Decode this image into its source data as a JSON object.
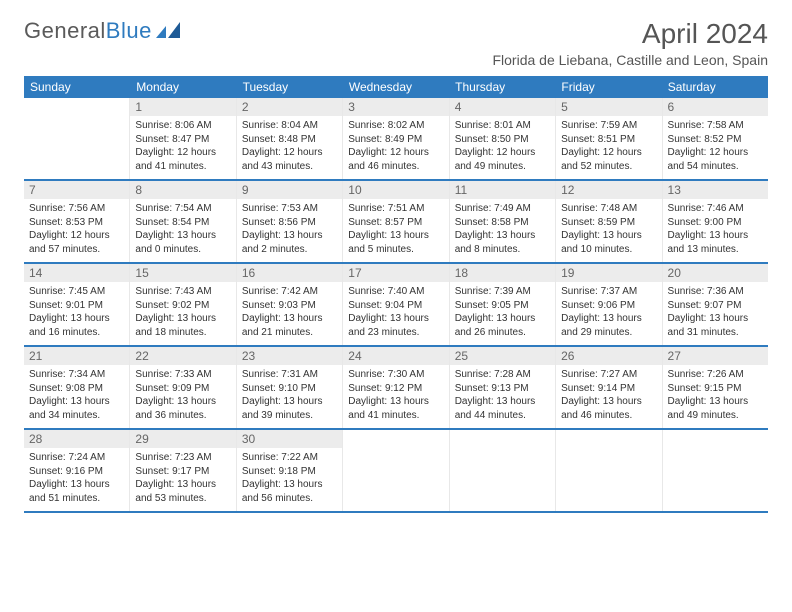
{
  "brand": {
    "part1": "General",
    "part2": "Blue"
  },
  "title": "April 2024",
  "location": "Florida de Liebana, Castille and Leon, Spain",
  "colors": {
    "accent": "#2f7bbf",
    "header_bg": "#2f7bbf",
    "header_text": "#ffffff",
    "daynum_bg": "#ececec",
    "border": "#2f7bbf",
    "text": "#333333"
  },
  "weekdays": [
    "Sunday",
    "Monday",
    "Tuesday",
    "Wednesday",
    "Thursday",
    "Friday",
    "Saturday"
  ],
  "weeks": [
    [
      {
        "empty": true
      },
      {
        "num": "1",
        "sunrise": "Sunrise: 8:06 AM",
        "sunset": "Sunset: 8:47 PM",
        "daylight1": "Daylight: 12 hours",
        "daylight2": "and 41 minutes."
      },
      {
        "num": "2",
        "sunrise": "Sunrise: 8:04 AM",
        "sunset": "Sunset: 8:48 PM",
        "daylight1": "Daylight: 12 hours",
        "daylight2": "and 43 minutes."
      },
      {
        "num": "3",
        "sunrise": "Sunrise: 8:02 AM",
        "sunset": "Sunset: 8:49 PM",
        "daylight1": "Daylight: 12 hours",
        "daylight2": "and 46 minutes."
      },
      {
        "num": "4",
        "sunrise": "Sunrise: 8:01 AM",
        "sunset": "Sunset: 8:50 PM",
        "daylight1": "Daylight: 12 hours",
        "daylight2": "and 49 minutes."
      },
      {
        "num": "5",
        "sunrise": "Sunrise: 7:59 AM",
        "sunset": "Sunset: 8:51 PM",
        "daylight1": "Daylight: 12 hours",
        "daylight2": "and 52 minutes."
      },
      {
        "num": "6",
        "sunrise": "Sunrise: 7:58 AM",
        "sunset": "Sunset: 8:52 PM",
        "daylight1": "Daylight: 12 hours",
        "daylight2": "and 54 minutes."
      }
    ],
    [
      {
        "num": "7",
        "sunrise": "Sunrise: 7:56 AM",
        "sunset": "Sunset: 8:53 PM",
        "daylight1": "Daylight: 12 hours",
        "daylight2": "and 57 minutes."
      },
      {
        "num": "8",
        "sunrise": "Sunrise: 7:54 AM",
        "sunset": "Sunset: 8:54 PM",
        "daylight1": "Daylight: 13 hours",
        "daylight2": "and 0 minutes."
      },
      {
        "num": "9",
        "sunrise": "Sunrise: 7:53 AM",
        "sunset": "Sunset: 8:56 PM",
        "daylight1": "Daylight: 13 hours",
        "daylight2": "and 2 minutes."
      },
      {
        "num": "10",
        "sunrise": "Sunrise: 7:51 AM",
        "sunset": "Sunset: 8:57 PM",
        "daylight1": "Daylight: 13 hours",
        "daylight2": "and 5 minutes."
      },
      {
        "num": "11",
        "sunrise": "Sunrise: 7:49 AM",
        "sunset": "Sunset: 8:58 PM",
        "daylight1": "Daylight: 13 hours",
        "daylight2": "and 8 minutes."
      },
      {
        "num": "12",
        "sunrise": "Sunrise: 7:48 AM",
        "sunset": "Sunset: 8:59 PM",
        "daylight1": "Daylight: 13 hours",
        "daylight2": "and 10 minutes."
      },
      {
        "num": "13",
        "sunrise": "Sunrise: 7:46 AM",
        "sunset": "Sunset: 9:00 PM",
        "daylight1": "Daylight: 13 hours",
        "daylight2": "and 13 minutes."
      }
    ],
    [
      {
        "num": "14",
        "sunrise": "Sunrise: 7:45 AM",
        "sunset": "Sunset: 9:01 PM",
        "daylight1": "Daylight: 13 hours",
        "daylight2": "and 16 minutes."
      },
      {
        "num": "15",
        "sunrise": "Sunrise: 7:43 AM",
        "sunset": "Sunset: 9:02 PM",
        "daylight1": "Daylight: 13 hours",
        "daylight2": "and 18 minutes."
      },
      {
        "num": "16",
        "sunrise": "Sunrise: 7:42 AM",
        "sunset": "Sunset: 9:03 PM",
        "daylight1": "Daylight: 13 hours",
        "daylight2": "and 21 minutes."
      },
      {
        "num": "17",
        "sunrise": "Sunrise: 7:40 AM",
        "sunset": "Sunset: 9:04 PM",
        "daylight1": "Daylight: 13 hours",
        "daylight2": "and 23 minutes."
      },
      {
        "num": "18",
        "sunrise": "Sunrise: 7:39 AM",
        "sunset": "Sunset: 9:05 PM",
        "daylight1": "Daylight: 13 hours",
        "daylight2": "and 26 minutes."
      },
      {
        "num": "19",
        "sunrise": "Sunrise: 7:37 AM",
        "sunset": "Sunset: 9:06 PM",
        "daylight1": "Daylight: 13 hours",
        "daylight2": "and 29 minutes."
      },
      {
        "num": "20",
        "sunrise": "Sunrise: 7:36 AM",
        "sunset": "Sunset: 9:07 PM",
        "daylight1": "Daylight: 13 hours",
        "daylight2": "and 31 minutes."
      }
    ],
    [
      {
        "num": "21",
        "sunrise": "Sunrise: 7:34 AM",
        "sunset": "Sunset: 9:08 PM",
        "daylight1": "Daylight: 13 hours",
        "daylight2": "and 34 minutes."
      },
      {
        "num": "22",
        "sunrise": "Sunrise: 7:33 AM",
        "sunset": "Sunset: 9:09 PM",
        "daylight1": "Daylight: 13 hours",
        "daylight2": "and 36 minutes."
      },
      {
        "num": "23",
        "sunrise": "Sunrise: 7:31 AM",
        "sunset": "Sunset: 9:10 PM",
        "daylight1": "Daylight: 13 hours",
        "daylight2": "and 39 minutes."
      },
      {
        "num": "24",
        "sunrise": "Sunrise: 7:30 AM",
        "sunset": "Sunset: 9:12 PM",
        "daylight1": "Daylight: 13 hours",
        "daylight2": "and 41 minutes."
      },
      {
        "num": "25",
        "sunrise": "Sunrise: 7:28 AM",
        "sunset": "Sunset: 9:13 PM",
        "daylight1": "Daylight: 13 hours",
        "daylight2": "and 44 minutes."
      },
      {
        "num": "26",
        "sunrise": "Sunrise: 7:27 AM",
        "sunset": "Sunset: 9:14 PM",
        "daylight1": "Daylight: 13 hours",
        "daylight2": "and 46 minutes."
      },
      {
        "num": "27",
        "sunrise": "Sunrise: 7:26 AM",
        "sunset": "Sunset: 9:15 PM",
        "daylight1": "Daylight: 13 hours",
        "daylight2": "and 49 minutes."
      }
    ],
    [
      {
        "num": "28",
        "sunrise": "Sunrise: 7:24 AM",
        "sunset": "Sunset: 9:16 PM",
        "daylight1": "Daylight: 13 hours",
        "daylight2": "and 51 minutes."
      },
      {
        "num": "29",
        "sunrise": "Sunrise: 7:23 AM",
        "sunset": "Sunset: 9:17 PM",
        "daylight1": "Daylight: 13 hours",
        "daylight2": "and 53 minutes."
      },
      {
        "num": "30",
        "sunrise": "Sunrise: 7:22 AM",
        "sunset": "Sunset: 9:18 PM",
        "daylight1": "Daylight: 13 hours",
        "daylight2": "and 56 minutes."
      },
      {
        "empty": true
      },
      {
        "empty": true
      },
      {
        "empty": true
      },
      {
        "empty": true
      }
    ]
  ]
}
